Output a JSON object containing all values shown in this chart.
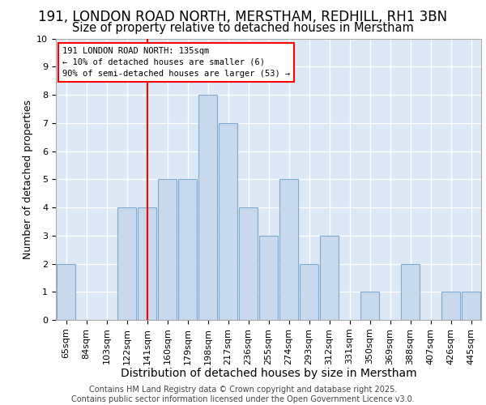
{
  "title1": "191, LONDON ROAD NORTH, MERSTHAM, REDHILL, RH1 3BN",
  "title2": "Size of property relative to detached houses in Merstham",
  "xlabel": "Distribution of detached houses by size in Merstham",
  "ylabel": "Number of detached properties",
  "categories": [
    "65sqm",
    "84sqm",
    "103sqm",
    "122sqm",
    "141sqm",
    "160sqm",
    "179sqm",
    "198sqm",
    "217sqm",
    "236sqm",
    "255sqm",
    "274sqm",
    "293sqm",
    "312sqm",
    "331sqm",
    "350sqm",
    "369sqm",
    "388sqm",
    "407sqm",
    "426sqm",
    "445sqm"
  ],
  "values": [
    2,
    0,
    0,
    4,
    4,
    5,
    5,
    8,
    7,
    4,
    3,
    5,
    2,
    3,
    0,
    1,
    0,
    2,
    0,
    1,
    1
  ],
  "bar_color": "#c8d9ee",
  "bar_edge_color": "#7aaad0",
  "red_line_index": 4,
  "annotation_text": "191 LONDON ROAD NORTH: 135sqm\n← 10% of detached houses are smaller (6)\n90% of semi-detached houses are larger (53) →",
  "annotation_box_color": "white",
  "annotation_box_edge": "red",
  "ylim": [
    0,
    10
  ],
  "yticks": [
    0,
    1,
    2,
    3,
    4,
    5,
    6,
    7,
    8,
    9,
    10
  ],
  "footer": "Contains HM Land Registry data © Crown copyright and database right 2025.\nContains public sector information licensed under the Open Government Licence v3.0.",
  "axes_bg_color": "#dce8f5",
  "fig_bg_color": "#ffffff",
  "grid_color": "#ffffff",
  "title_fontsize": 12,
  "subtitle_fontsize": 10.5,
  "tick_fontsize": 8,
  "xlabel_fontsize": 10,
  "ylabel_fontsize": 9,
  "footer_fontsize": 7
}
